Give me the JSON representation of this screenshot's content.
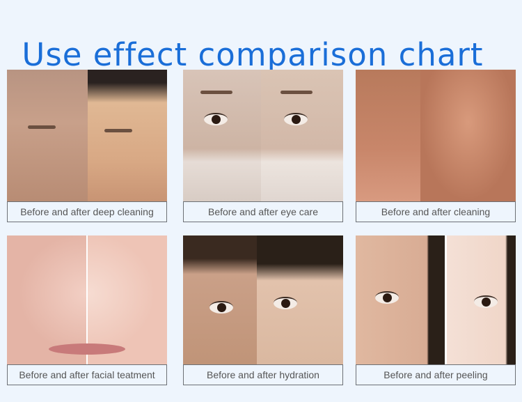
{
  "title": "Use effect comparison chart",
  "cards": [
    {
      "caption": "Before and after deep cleaning"
    },
    {
      "caption": "Before and after eye care"
    },
    {
      "caption": "Before and after cleaning"
    },
    {
      "caption": "Before and after facial teatment"
    },
    {
      "caption": "Before and after hydration"
    },
    {
      "caption": "Before and after peeling"
    }
  ],
  "colors": {
    "title": "#1a6ed8",
    "background": "#eef5fd",
    "caption_border": "#6c7075"
  }
}
